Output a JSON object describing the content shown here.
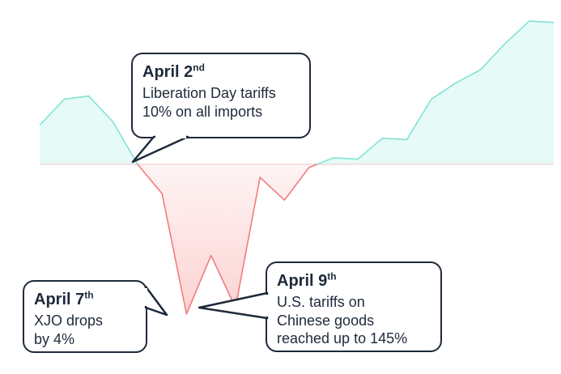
{
  "chart_data": {
    "type": "area",
    "baseline": 0,
    "x": [
      1,
      2,
      3,
      4,
      5,
      6,
      7,
      8,
      9,
      10,
      11,
      12,
      13,
      14,
      15,
      16,
      17,
      18,
      19,
      20,
      21,
      22
    ],
    "values": [
      0.6,
      1.0,
      1.05,
      0.65,
      0.0,
      -0.45,
      -2.3,
      -1.4,
      -2.2,
      -0.2,
      -0.55,
      -0.05,
      0.1,
      0.08,
      0.4,
      0.38,
      1.0,
      1.25,
      1.45,
      1.85,
      2.2,
      2.18
    ],
    "ylim": [
      -2.45,
      2.4
    ],
    "colors": {
      "positive_fill": "#e6fbf7",
      "positive_line": "#7fe3d3",
      "negative_fill": "#fde2e2",
      "negative_line": "#f27c7c",
      "baseline": "#f3c7c7"
    },
    "annotations": [
      {
        "date": "April 2",
        "suffix": "nd",
        "lines": [
          "Liberation Day tariffs",
          "10% on all imports"
        ]
      },
      {
        "date": "April 7",
        "suffix": "th",
        "lines": [
          "XJO  drops",
          "by 4%"
        ]
      },
      {
        "date": "April 9",
        "suffix": "th",
        "lines": [
          "U.S. tariffs on",
          "Chinese goods",
          "reached up to 145%"
        ]
      }
    ]
  }
}
